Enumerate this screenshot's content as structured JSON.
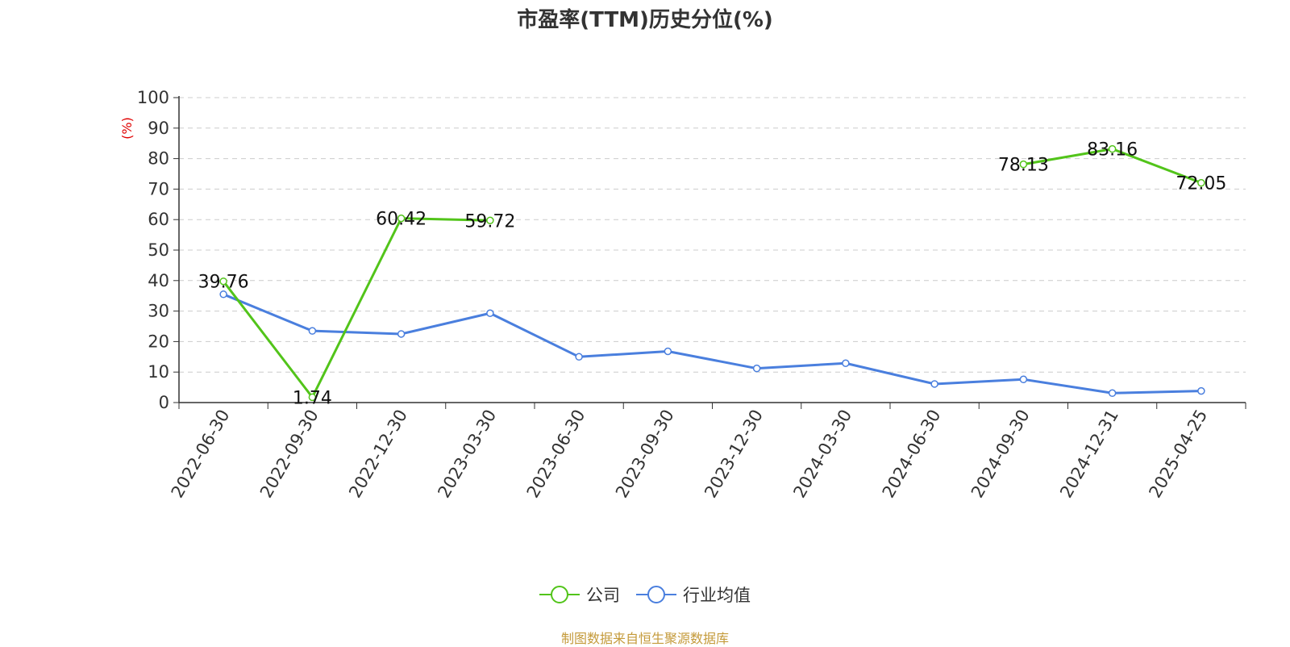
{
  "chart_data": {
    "type": "line",
    "title": "市盈率(TTM)历史分位(%)",
    "ylabel": "(%)",
    "xlabel": "",
    "ylim": [
      0,
      100
    ],
    "yticks": [
      0,
      10,
      20,
      30,
      40,
      50,
      60,
      70,
      80,
      90,
      100
    ],
    "grid": true,
    "legend": "bottom-center",
    "categories": [
      "2022-06-30",
      "2022-09-30",
      "2022-12-30",
      "2023-03-30",
      "2023-06-30",
      "2023-09-30",
      "2023-12-30",
      "2024-03-30",
      "2024-06-30",
      "2024-09-30",
      "2024-12-31",
      "2025-04-25"
    ],
    "series": [
      {
        "name": "公司",
        "color": "#52c41a",
        "values": [
          39.76,
          1.74,
          60.42,
          59.72,
          null,
          null,
          null,
          null,
          null,
          78.13,
          83.16,
          72.05
        ],
        "labels": [
          "39.76",
          "1.74",
          "60.42",
          "59.72",
          null,
          null,
          null,
          null,
          null,
          "78.13",
          "83.16",
          "72.05"
        ]
      },
      {
        "name": "行业均值",
        "color": "#4a7fde",
        "values": [
          35.5,
          23.5,
          22.5,
          29.3,
          15.0,
          16.8,
          11.2,
          12.9,
          6.1,
          7.6,
          3.1,
          3.8
        ],
        "labels": [
          null,
          null,
          null,
          null,
          null,
          null,
          null,
          null,
          null,
          null,
          null,
          null
        ]
      }
    ],
    "source": "制图数据来自恒生聚源数据库"
  }
}
